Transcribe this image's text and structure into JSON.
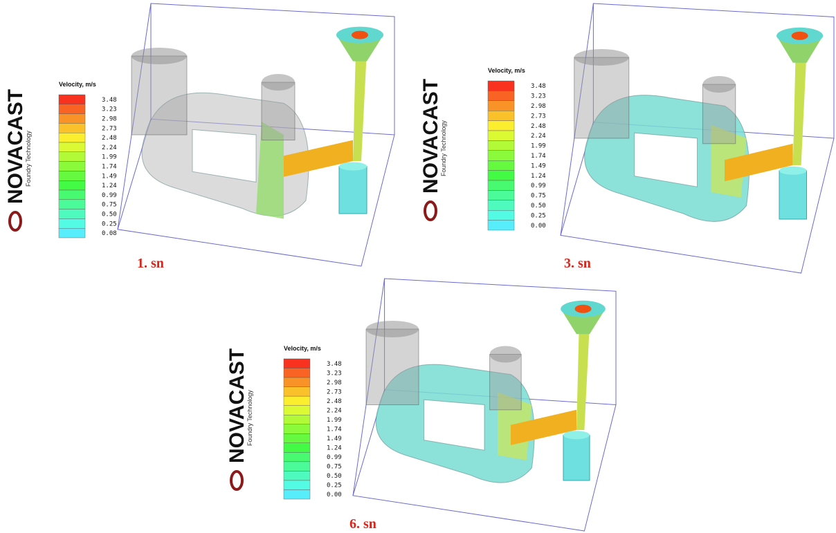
{
  "panels": [
    {
      "caption": "1. sn",
      "logo": {
        "brand": "NOVACAST",
        "tagline": "Foundry Technology"
      },
      "legend": {
        "title": "Velocity, m/s",
        "labels": [
          "3.48",
          "3.23",
          "2.98",
          "2.73",
          "2.48",
          "2.24",
          "1.99",
          "1.74",
          "1.49",
          "1.24",
          "0.99",
          "0.75",
          "0.50",
          "0.25",
          "0.08"
        ]
      }
    },
    {
      "caption": "3. sn",
      "logo": {
        "brand": "NOVACAST",
        "tagline": "Foundry Technology"
      },
      "legend": {
        "title": "Velocity, m/s",
        "labels": [
          "3.48",
          "3.23",
          "2.98",
          "2.73",
          "2.48",
          "2.24",
          "1.99",
          "1.74",
          "1.49",
          "1.24",
          "0.99",
          "0.75",
          "0.50",
          "0.25",
          "0.00"
        ]
      }
    },
    {
      "caption": "6. sn",
      "logo": {
        "brand": "NOVACAST",
        "tagline": "Foundry Technology"
      },
      "legend": {
        "title": "Velocity, m/s",
        "labels": [
          "3.48",
          "3.23",
          "2.98",
          "2.73",
          "2.48",
          "2.24",
          "1.99",
          "1.74",
          "1.49",
          "1.24",
          "0.99",
          "0.75",
          "0.50",
          "0.25",
          "0.00"
        ]
      }
    }
  ]
}
